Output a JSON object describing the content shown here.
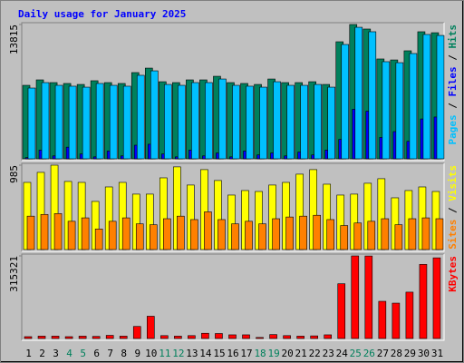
{
  "chart_data": [
    {
      "type": "bar",
      "title": "Daily usage for January 2025",
      "legend_separator": " / ",
      "series": [
        {
          "name": "Pages",
          "color": "#00c0ff",
          "values": [
            7280,
            7840,
            7560,
            7470,
            7370,
            7750,
            7560,
            7470,
            8590,
            9050,
            7650,
            7560,
            7840,
            7840,
            8210,
            7560,
            7470,
            7370,
            7930,
            7560,
            7560,
            7650,
            7370,
            11760,
            13530,
            13070,
            9990,
            9890,
            10830,
            12790,
            12690
          ]
        },
        {
          "name": "Files",
          "color": "#0000ff",
          "values": [
            120,
            900,
            300,
            1200,
            500,
            200,
            800,
            300,
            1400,
            1500,
            500,
            200,
            900,
            300,
            600,
            200,
            800,
            400,
            600,
            300,
            700,
            400,
            900,
            2000,
            5100,
            4900,
            2200,
            2800,
            1800,
            4100,
            4300
          ]
        },
        {
          "name": "Hits",
          "color": "#00805c",
          "values": [
            7560,
            8120,
            7840,
            7750,
            7650,
            8030,
            7840,
            7750,
            8870,
            9330,
            7930,
            7840,
            8120,
            8120,
            8490,
            7840,
            7750,
            7650,
            8210,
            7840,
            7840,
            7930,
            7650,
            12040,
            13815,
            13350,
            10270,
            10170,
            11110,
            13070,
            12970
          ]
        }
      ],
      "ylim": [
        0,
        13815
      ],
      "yticks": [
        13815
      ]
    },
    {
      "type": "bar",
      "legend_separator": " / ",
      "series": [
        {
          "name": "Sites",
          "color": "#ff8000",
          "values": [
            390,
            410,
            420,
            330,
            370,
            240,
            330,
            370,
            300,
            290,
            360,
            390,
            350,
            440,
            350,
            300,
            330,
            300,
            360,
            380,
            390,
            400,
            350,
            280,
            310,
            330,
            360,
            290,
            360,
            370,
            360
          ]
        },
        {
          "name": "Visits",
          "color": "#ffff00",
          "values": [
            784,
            901,
            985,
            795,
            784,
            562,
            731,
            784,
            647,
            647,
            837,
            965,
            753,
            933,
            806,
            636,
            689,
            678,
            753,
            784,
            880,
            933,
            763,
            636,
            647,
            774,
            827,
            604,
            689,
            731,
            678
          ]
        }
      ],
      "ylim": [
        0,
        985
      ],
      "yticks": [
        985
      ]
    },
    {
      "type": "bar",
      "categories": [
        "1",
        "2",
        "3",
        "4",
        "5",
        "6",
        "7",
        "8",
        "9",
        "10",
        "11",
        "12",
        "13",
        "14",
        "15",
        "16",
        "17",
        "18",
        "19",
        "20",
        "21",
        "22",
        "23",
        "24",
        "25",
        "26",
        "27",
        "28",
        "29",
        "30",
        "31"
      ],
      "highlighted": [
        "4",
        "5",
        "11",
        "12",
        "18",
        "19",
        "25",
        "26"
      ],
      "highlight_color": "#00805c",
      "series": [
        {
          "name": "KBytes",
          "color": "#ff0000",
          "values": [
            7000,
            9000,
            9000,
            7000,
            9000,
            8000,
            12000,
            9000,
            46000,
            85000,
            11000,
            9000,
            11000,
            20000,
            19000,
            14000,
            14000,
            4000,
            15000,
            11000,
            9000,
            10000,
            14000,
            209000,
            315321,
            315000,
            142000,
            135000,
            177000,
            283000,
            308000
          ]
        }
      ],
      "ylim": [
        0,
        315321
      ],
      "yticks": [
        315321
      ]
    }
  ]
}
